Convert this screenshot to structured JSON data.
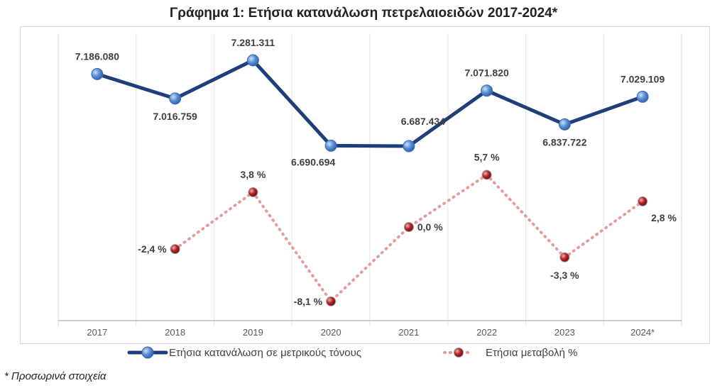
{
  "chart_data": {
    "type": "line",
    "title": "Γράφημα 1: Ετήσια κατανάλωση πετρελαιοειδών 2017-2024*",
    "categories": [
      "2017",
      "2018",
      "2019",
      "2020",
      "2021",
      "2022",
      "2023",
      "2024*"
    ],
    "series": [
      {
        "name": "Ετήσια κατανάλωση σε μετρικούς τόνους",
        "axis": "primary",
        "color": "#1f3f7a",
        "marker_color": "#5b8fd6",
        "style": "solid",
        "values": [
          7186080,
          7016759,
          7281311,
          6690694,
          6687434,
          7071820,
          6837722,
          7029109
        ],
        "labels": [
          "7.186.080",
          "7.016.759",
          "7.281.311",
          "6.690.694",
          "6.687.434",
          "7.071.820",
          "6.837.722",
          "7.029.109"
        ],
        "label_pos": [
          "above",
          "below",
          "above",
          "below-left",
          "above-right",
          "above",
          "below",
          "above"
        ]
      },
      {
        "name": "Ετήσια μεταβολή %",
        "axis": "secondary",
        "color": "#e69a9a",
        "marker_color": "#b22222",
        "style": "dotted",
        "values": [
          null,
          -2.4,
          3.8,
          -8.1,
          0.0,
          5.7,
          -3.3,
          2.8
        ],
        "labels": [
          "",
          "-2,4 %",
          "3,8 %",
          "-8,1 %",
          "0,0 %",
          "5,7 %",
          "-3,3 %",
          "2,8 %"
        ],
        "label_pos": [
          "",
          "left",
          "above",
          "left",
          "right",
          "above",
          "below",
          "below-right"
        ]
      }
    ],
    "primary_ylim": [
      5480000,
      7517000
    ],
    "secondary_ylim": [
      -10.2,
      21.9
    ],
    "grid": "vertical",
    "legend": "bottom",
    "footnote": "* Προσωρινά στοιχεία"
  }
}
